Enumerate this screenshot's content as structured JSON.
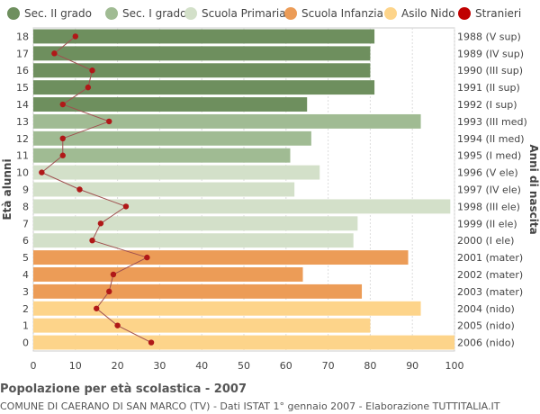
{
  "chart_data": {
    "type": "bar",
    "orientation": "horizontal",
    "title": "Popolazione per età scolastica - 2007",
    "subtitle": "COMUNE DI CAERANO DI SAN MARCO (TV) - Dati ISTAT 1° gennaio 2007 - Elaborazione TUTTITALIA.IT",
    "ylabel_left": "Età alunni",
    "ylabel_right": "Anni di nascita",
    "xlim": [
      0,
      100
    ],
    "xticks": [
      0,
      10,
      20,
      30,
      40,
      50,
      60,
      70,
      80,
      90,
      100
    ],
    "grid": true,
    "legend_position": "top",
    "legend": [
      {
        "name": "Sec. II grado",
        "color": "#6e8f5e"
      },
      {
        "name": "Sec. I grado",
        "color": "#a0bb93"
      },
      {
        "name": "Scuola Primaria",
        "color": "#d3e0c9"
      },
      {
        "name": "Scuola Infanzia",
        "color": "#ec9c57"
      },
      {
        "name": "Asilo Nido",
        "color": "#fdd48a"
      },
      {
        "name": "Stranieri",
        "color": "#c00000"
      }
    ],
    "rows": [
      {
        "age": "18",
        "year": "1988 (V sup)",
        "value": 81,
        "group": 0,
        "stranieri": 10
      },
      {
        "age": "17",
        "year": "1989 (IV sup)",
        "value": 80,
        "group": 0,
        "stranieri": 5
      },
      {
        "age": "16",
        "year": "1990 (III sup)",
        "value": 80,
        "group": 0,
        "stranieri": 14
      },
      {
        "age": "15",
        "year": "1991 (II sup)",
        "value": 81,
        "group": 0,
        "stranieri": 13
      },
      {
        "age": "14",
        "year": "1992 (I sup)",
        "value": 65,
        "group": 0,
        "stranieri": 7
      },
      {
        "age": "13",
        "year": "1993 (III med)",
        "value": 92,
        "group": 1,
        "stranieri": 18
      },
      {
        "age": "12",
        "year": "1994 (II med)",
        "value": 66,
        "group": 1,
        "stranieri": 7
      },
      {
        "age": "11",
        "year": "1995 (I med)",
        "value": 61,
        "group": 1,
        "stranieri": 7
      },
      {
        "age": "10",
        "year": "1996 (V ele)",
        "value": 68,
        "group": 2,
        "stranieri": 2
      },
      {
        "age": "9",
        "year": "1997 (IV ele)",
        "value": 62,
        "group": 2,
        "stranieri": 11
      },
      {
        "age": "8",
        "year": "1998 (III ele)",
        "value": 99,
        "group": 2,
        "stranieri": 22
      },
      {
        "age": "7",
        "year": "1999 (II ele)",
        "value": 77,
        "group": 2,
        "stranieri": 16
      },
      {
        "age": "6",
        "year": "2000 (I ele)",
        "value": 76,
        "group": 2,
        "stranieri": 14
      },
      {
        "age": "5",
        "year": "2001 (mater)",
        "value": 89,
        "group": 3,
        "stranieri": 27
      },
      {
        "age": "4",
        "year": "2002 (mater)",
        "value": 64,
        "group": 3,
        "stranieri": 19
      },
      {
        "age": "3",
        "year": "2003 (mater)",
        "value": 78,
        "group": 3,
        "stranieri": 18
      },
      {
        "age": "2",
        "year": "2004 (nido)",
        "value": 92,
        "group": 4,
        "stranieri": 15
      },
      {
        "age": "1",
        "year": "2005 (nido)",
        "value": 80,
        "group": 4,
        "stranieri": 20
      },
      {
        "age": "0",
        "year": "2006 (nido)",
        "value": 100,
        "group": 4,
        "stranieri": 28
      }
    ]
  }
}
